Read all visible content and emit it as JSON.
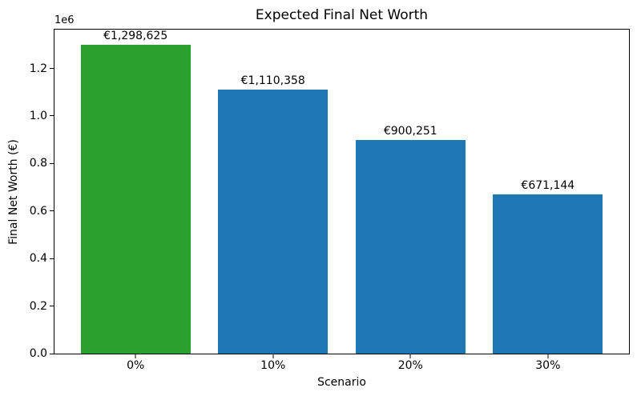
{
  "chart_data": {
    "type": "bar",
    "title": "Expected Final Net Worth",
    "xlabel": "Scenario",
    "ylabel": "Final Net Worth (€)",
    "categories": [
      "0%",
      "10%",
      "20%",
      "30%"
    ],
    "values": [
      1298625,
      1110358,
      900251,
      671144
    ],
    "bar_labels": [
      "€1,298,625",
      "€1,110,358",
      "€900,251",
      "€671,144"
    ],
    "bar_colors": [
      "#2ca02c",
      "#1f77b4",
      "#1f77b4",
      "#1f77b4"
    ],
    "ylim": [
      0,
      1363556
    ],
    "y_ticks": [
      0,
      200000,
      400000,
      600000,
      800000,
      1000000,
      1200000
    ],
    "y_tick_labels": [
      "0.0",
      "0.2",
      "0.4",
      "0.6",
      "0.8",
      "1.0",
      "1.2"
    ],
    "offset_text": "1e6",
    "grid": false,
    "legend": null,
    "background_color": "#ffffff",
    "text_color": "#000000",
    "spine_color": "#000000"
  }
}
